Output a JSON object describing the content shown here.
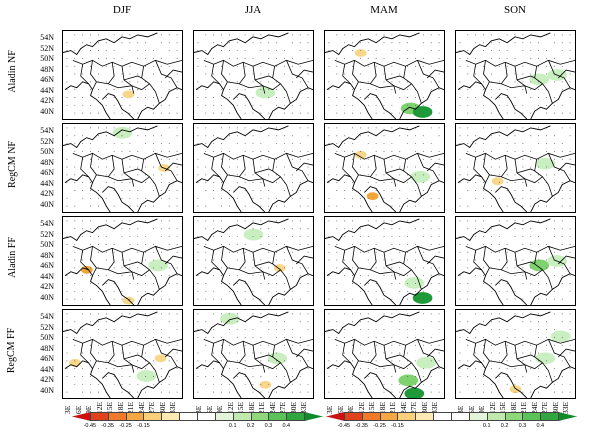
{
  "seasons": [
    "DJF",
    "JJA",
    "MAM",
    "SON"
  ],
  "rows": [
    "Aladin NF",
    "RegCM NF",
    "Aladin FF",
    "RegCM FF"
  ],
  "lat_ticks": [
    "54N",
    "52N",
    "50N",
    "48N",
    "46N",
    "44N",
    "42N",
    "40N"
  ],
  "lon_ticks": [
    "3E",
    "6E",
    "9E",
    "12E",
    "15E",
    "18E",
    "21E",
    "24E",
    "27E",
    "30E",
    "33E"
  ],
  "map": {
    "projection": "Lambert conformal, Central / Eastern Europe",
    "features": [
      "coastlines",
      "national borders",
      "stippling dots"
    ],
    "extent_lon": [
      3,
      33
    ],
    "extent_lat": [
      40,
      54
    ]
  },
  "colorbar": {
    "tick_labels": [
      "-0.45",
      "-0.35",
      "-0.25",
      "-0.15",
      "0.1",
      "0.2",
      "0.3",
      "0.4"
    ],
    "colors": [
      "#cc1111",
      "#e0421d",
      "#ee7a2a",
      "#f6a743",
      "#fbd07a",
      "#fde9b3",
      "#ffffff",
      "#ffffff",
      "#e2f5d8",
      "#bfe9ad",
      "#8fd77b",
      "#5bc159",
      "#2fa640",
      "#118a2b"
    ],
    "extend": "both"
  },
  "anomaly_colors": {
    "positive_light": "#c9efc0",
    "positive_mid": "#7fd36e",
    "positive_strong": "#1f9a38",
    "negative_light": "#f8d78a",
    "negative_mid": "#f0a53a"
  },
  "panels": [
    {
      "row": 0,
      "col": 0,
      "pos": [],
      "neg": [
        [
          0.55,
          0.72,
          "light"
        ]
      ]
    },
    {
      "row": 0,
      "col": 1,
      "pos": [
        [
          0.6,
          0.7,
          "light"
        ]
      ],
      "neg": []
    },
    {
      "row": 0,
      "col": 2,
      "pos": [
        [
          0.72,
          0.88,
          "mid"
        ],
        [
          0.82,
          0.92,
          "strong"
        ]
      ],
      "neg": [
        [
          0.3,
          0.25,
          "light"
        ]
      ]
    },
    {
      "row": 0,
      "col": 3,
      "pos": [
        [
          0.7,
          0.55,
          "light"
        ],
        [
          0.85,
          0.5,
          "light"
        ]
      ],
      "neg": []
    },
    {
      "row": 1,
      "col": 0,
      "pos": [
        [
          0.5,
          0.1,
          "light"
        ]
      ],
      "neg": [
        [
          0.85,
          0.5,
          "light"
        ]
      ]
    },
    {
      "row": 1,
      "col": 1,
      "pos": [],
      "neg": []
    },
    {
      "row": 1,
      "col": 2,
      "pos": [
        [
          0.8,
          0.6,
          "light"
        ]
      ],
      "neg": [
        [
          0.4,
          0.82,
          "mid"
        ],
        [
          0.3,
          0.35,
          "light"
        ]
      ]
    },
    {
      "row": 1,
      "col": 3,
      "pos": [
        [
          0.75,
          0.45,
          "light"
        ]
      ],
      "neg": [
        [
          0.35,
          0.65,
          "light"
        ]
      ]
    },
    {
      "row": 2,
      "col": 0,
      "pos": [
        [
          0.8,
          0.55,
          "light"
        ]
      ],
      "neg": [
        [
          0.2,
          0.6,
          "mid"
        ],
        [
          0.55,
          0.95,
          "light"
        ]
      ]
    },
    {
      "row": 2,
      "col": 1,
      "pos": [
        [
          0.5,
          0.2,
          "light"
        ]
      ],
      "neg": [
        [
          0.72,
          0.58,
          "light"
        ]
      ]
    },
    {
      "row": 2,
      "col": 2,
      "pos": [
        [
          0.75,
          0.75,
          "light"
        ],
        [
          0.82,
          0.92,
          "strong"
        ]
      ],
      "neg": []
    },
    {
      "row": 2,
      "col": 3,
      "pos": [
        [
          0.7,
          0.55,
          "mid"
        ],
        [
          0.85,
          0.5,
          "light"
        ]
      ],
      "neg": []
    },
    {
      "row": 3,
      "col": 0,
      "pos": [
        [
          0.7,
          0.75,
          "light"
        ]
      ],
      "neg": [
        [
          0.1,
          0.6,
          "light"
        ],
        [
          0.82,
          0.55,
          "light"
        ]
      ]
    },
    {
      "row": 3,
      "col": 1,
      "pos": [
        [
          0.3,
          0.1,
          "light"
        ],
        [
          0.7,
          0.55,
          "light"
        ]
      ],
      "neg": [
        [
          0.6,
          0.85,
          "light"
        ]
      ]
    },
    {
      "row": 3,
      "col": 2,
      "pos": [
        [
          0.7,
          0.8,
          "mid"
        ],
        [
          0.85,
          0.6,
          "light"
        ],
        [
          0.75,
          0.95,
          "strong"
        ]
      ],
      "neg": []
    },
    {
      "row": 3,
      "col": 3,
      "pos": [
        [
          0.75,
          0.55,
          "light"
        ],
        [
          0.88,
          0.3,
          "light"
        ]
      ],
      "neg": [
        [
          0.5,
          0.9,
          "light"
        ]
      ]
    }
  ]
}
